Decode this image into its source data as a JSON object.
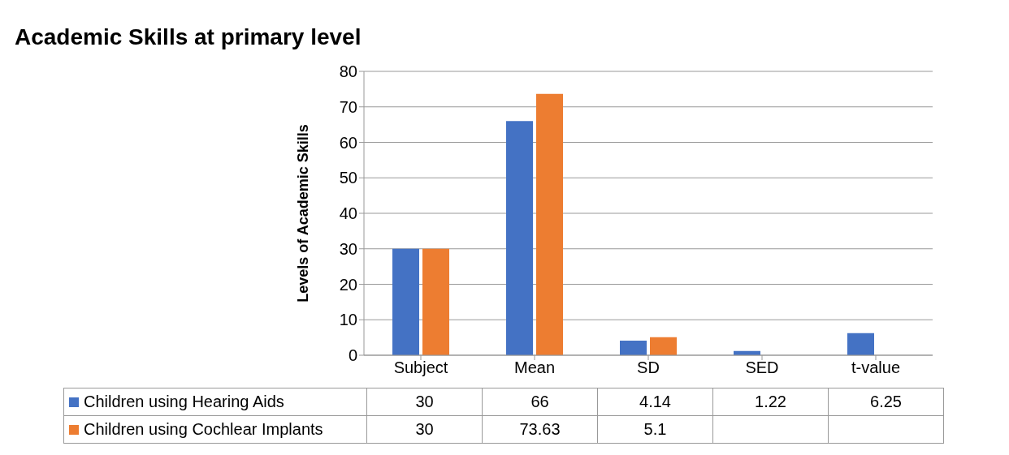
{
  "chart_data": {
    "type": "bar",
    "title": "Academic Skills at primary level",
    "ylabel": "Levels of Academic Skills",
    "categories": [
      "Subject",
      "Mean",
      "SD",
      "SED",
      "t-value"
    ],
    "series": [
      {
        "name": "Children using Hearing Aids",
        "color": "#4472c4",
        "values": [
          30,
          66,
          4.14,
          1.22,
          6.25
        ]
      },
      {
        "name": "Children using Cochlear Implants",
        "color": "#ed7d31",
        "values": [
          30,
          73.63,
          5.1,
          null,
          null
        ]
      }
    ],
    "ylim": [
      0,
      80
    ],
    "yticks": [
      0,
      10,
      20,
      30,
      40,
      50,
      60,
      70,
      80
    ],
    "grid": "y",
    "legend": "bottom",
    "data_labels": true
  }
}
